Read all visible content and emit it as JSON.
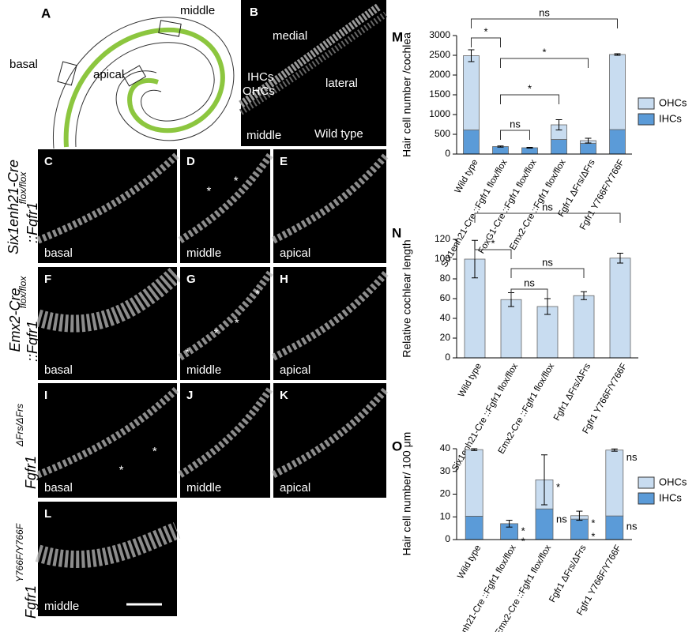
{
  "panel_a": {
    "label": "A",
    "basal": "basal",
    "apical": "apical",
    "middle": "middle"
  },
  "panel_b": {
    "label": "B",
    "medial": "medial",
    "ihcs": "IHCs",
    "ohcs": "OHCs",
    "lateral": "lateral",
    "region": "middle",
    "genotype": "Wild type"
  },
  "image_panels": [
    {
      "label": "C",
      "region": "basal"
    },
    {
      "label": "D",
      "region": "middle",
      "marks": [
        "*",
        "*"
      ]
    },
    {
      "label": "E",
      "region": "apical"
    },
    {
      "label": "F",
      "region": "basal"
    },
    {
      "label": "G",
      "region": "middle",
      "marks": [
        "*",
        "*",
        "*",
        "*"
      ]
    },
    {
      "label": "H",
      "region": "apical"
    },
    {
      "label": "I",
      "region": "basal",
      "marks": [
        "*",
        "*"
      ]
    },
    {
      "label": "J",
      "region": "middle"
    },
    {
      "label": "K",
      "region": "apical"
    },
    {
      "label": "L",
      "region": "middle"
    }
  ],
  "row_labels": [
    {
      "lines": [
        "Six1enh21-Cre",
        "::Fgfr1"
      ],
      "superscript": "flox/flox"
    },
    {
      "lines": [
        "Emx2-Cre",
        "::Fgfr1"
      ],
      "superscript": "flox/flox"
    },
    {
      "lines": [
        "Fgfr1"
      ],
      "superscript": "ΔFrs/ΔFrs"
    },
    {
      "lines": [
        "Fgfr1"
      ],
      "superscript": "Y766F/Y766F"
    }
  ],
  "chart_data": [
    {
      "type": "bar",
      "stacked": true,
      "label": "M",
      "y_label": "Hair cell number /cochlea",
      "categories": [
        "Wild type",
        "Six1enh21-Cre ::Fgfr1 flox/flox",
        "FoxG1-Cre ::Fgfr1 flox/flox",
        "Emx2-Cre ::Fgfr1 flox/flox",
        "Fgfr1 ΔFrs/ΔFrs",
        "Fgfr1 Y766F/Y766F"
      ],
      "series": [
        {
          "name": "IHCs",
          "color": "#5b9bd8",
          "values": [
            610,
            190,
            160,
            370,
            270,
            620
          ]
        },
        {
          "name": "OHCs",
          "color": "#c8dcf0",
          "values": [
            1880,
            0,
            0,
            370,
            70,
            1900
          ]
        }
      ],
      "errors": [
        150,
        15,
        10,
        130,
        60,
        20
      ],
      "ylim": [
        0,
        3000
      ],
      "yticks": [
        0,
        500,
        1000,
        1500,
        2000,
        2500,
        3000
      ],
      "legend": "right",
      "significance": [
        {
          "from": 0,
          "to": 5,
          "text": "ns"
        },
        {
          "from": 0,
          "to": 1,
          "text": "*"
        },
        {
          "from": 1,
          "to": 4,
          "text": "*"
        },
        {
          "from": 1,
          "to": 3,
          "text": "*"
        },
        {
          "from": 1,
          "to": 2,
          "text": "ns"
        }
      ]
    },
    {
      "type": "bar",
      "label": "N",
      "y_label": "Relative cochlear length",
      "categories": [
        "Wild type",
        "Six1enh21-Cre ::Fgfr1 flox/flox",
        "Emx2-Cre ::Fgfr1 flox/flox",
        "Fgfr1 ΔFrs/ΔFrs",
        "Fgfr1 Y766F/Y766F"
      ],
      "values": [
        100,
        59,
        52,
        63,
        101
      ],
      "errors": [
        19,
        7,
        8,
        4,
        5
      ],
      "color": "#c8dcf0",
      "ylim": [
        0,
        120
      ],
      "yticks": [
        0,
        20,
        40,
        60,
        80,
        100,
        120
      ],
      "significance": [
        {
          "from": 0,
          "to": 4,
          "text": "ns"
        },
        {
          "from": 0,
          "to": 1,
          "text": "*"
        },
        {
          "from": 1,
          "to": 3,
          "text": "ns"
        },
        {
          "from": 1,
          "to": 2,
          "text": "ns"
        }
      ]
    },
    {
      "type": "bar",
      "stacked": true,
      "label": "O",
      "y_label": "Hair cell number/ 100 μm",
      "categories": [
        "Wild type",
        "Six1enh21-Cre ::Fgfr1 flox/flox",
        "Emx2-Cre ::Fgfr1 flox/flox",
        "Fgfr1 ΔFrs/ΔFrs",
        "Fgfr1 Y766F/Y766F"
      ],
      "series": [
        {
          "name": "IHCs",
          "color": "#5b9bd8",
          "values": [
            10.3,
            7,
            13.5,
            9,
            10.4
          ]
        },
        {
          "name": "OHCs",
          "color": "#c8dcf0",
          "values": [
            29.3,
            0,
            12.8,
            1.5,
            29
          ]
        }
      ],
      "errors": [
        0.4,
        1.5,
        11,
        2,
        0.5
      ],
      "ylim": [
        0,
        40
      ],
      "yticks": [
        0,
        10,
        20,
        30,
        40
      ],
      "legend": "right",
      "annotations": [
        {
          "category": 1,
          "series": 1,
          "text": "*"
        },
        {
          "category": 1,
          "series": 0,
          "text": "*"
        },
        {
          "category": 2,
          "series": 1,
          "text": "*"
        },
        {
          "category": 2,
          "series": 0,
          "text": "ns"
        },
        {
          "category": 3,
          "series": 1,
          "text": "*"
        },
        {
          "category": 3,
          "series": 0,
          "text": "*"
        },
        {
          "category": 4,
          "series": 1,
          "text": "ns"
        },
        {
          "category": 4,
          "series": 0,
          "text": "ns"
        }
      ]
    }
  ]
}
